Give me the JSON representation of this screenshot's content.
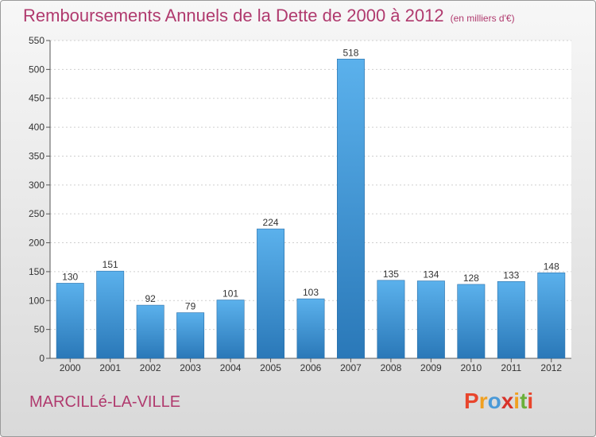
{
  "chart_data": {
    "type": "bar",
    "title": "Remboursements Annuels de la Dette de 2000 à 2012",
    "subtitle": "(en milliers d'€)",
    "categories": [
      "2000",
      "2001",
      "2002",
      "2003",
      "2004",
      "2005",
      "2006",
      "2007",
      "2008",
      "2009",
      "2010",
      "2011",
      "2012"
    ],
    "values": [
      130,
      151,
      92,
      79,
      101,
      224,
      103,
      518,
      135,
      134,
      128,
      133,
      148
    ],
    "xlabel": "",
    "ylabel": "",
    "ylim": [
      0,
      550
    ],
    "yticks": [
      0,
      50,
      100,
      150,
      200,
      250,
      300,
      350,
      400,
      450,
      500,
      550
    ],
    "grid": true,
    "legend": "none",
    "bar_color": "#3a8fd6"
  },
  "footer": {
    "location": "MARCILLé-LA-VILLE",
    "brand_letters": [
      "P",
      "r",
      "o",
      "x",
      "i",
      "t",
      "i"
    ],
    "brand_colors": [
      "#e8452c",
      "#f0a020",
      "#4a9ad8",
      "#d8332a",
      "#f0a020",
      "#6ab03a",
      "#e8452c"
    ]
  }
}
